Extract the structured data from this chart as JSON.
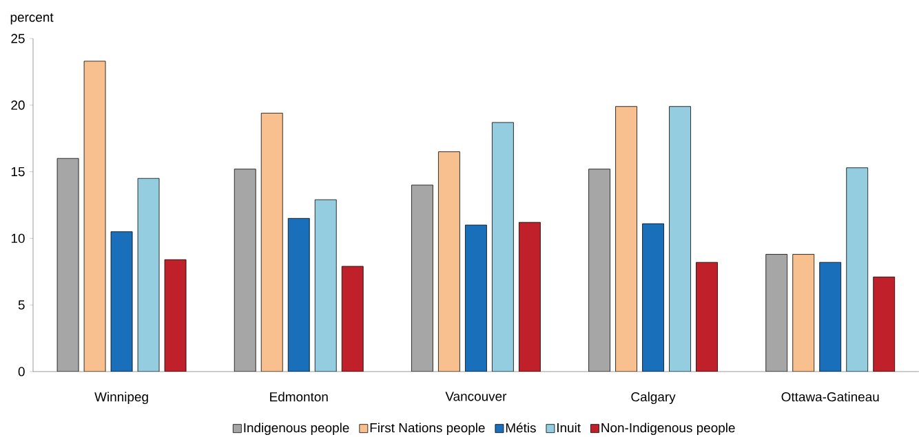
{
  "chart_data": {
    "type": "bar",
    "ylabel": "percent",
    "categories": [
      "Winnipeg",
      "Edmonton",
      "Vancouver",
      "Calgary",
      "Ottawa-Gatineau"
    ],
    "series": [
      {
        "name": "Indigenous people",
        "color": "#a6a6a6",
        "values": [
          16.0,
          15.2,
          14.0,
          15.2,
          8.8
        ]
      },
      {
        "name": "First Nations people",
        "color": "#f9c08f",
        "values": [
          23.3,
          19.4,
          16.5,
          19.9,
          8.8
        ]
      },
      {
        "name": "Métis",
        "color": "#1a6fba",
        "values": [
          10.5,
          11.5,
          11.0,
          11.1,
          8.2
        ]
      },
      {
        "name": "Inuit",
        "color": "#93cddf",
        "values": [
          14.5,
          12.9,
          18.7,
          19.9,
          15.3
        ]
      },
      {
        "name": "Non-Indigenous people",
        "color": "#c0202a",
        "values": [
          8.4,
          7.9,
          11.2,
          8.2,
          7.1
        ]
      }
    ],
    "ylim": [
      0,
      25
    ],
    "yticks": [
      0,
      5,
      10,
      15,
      20,
      25
    ],
    "legend": "bottom",
    "grid": false
  }
}
